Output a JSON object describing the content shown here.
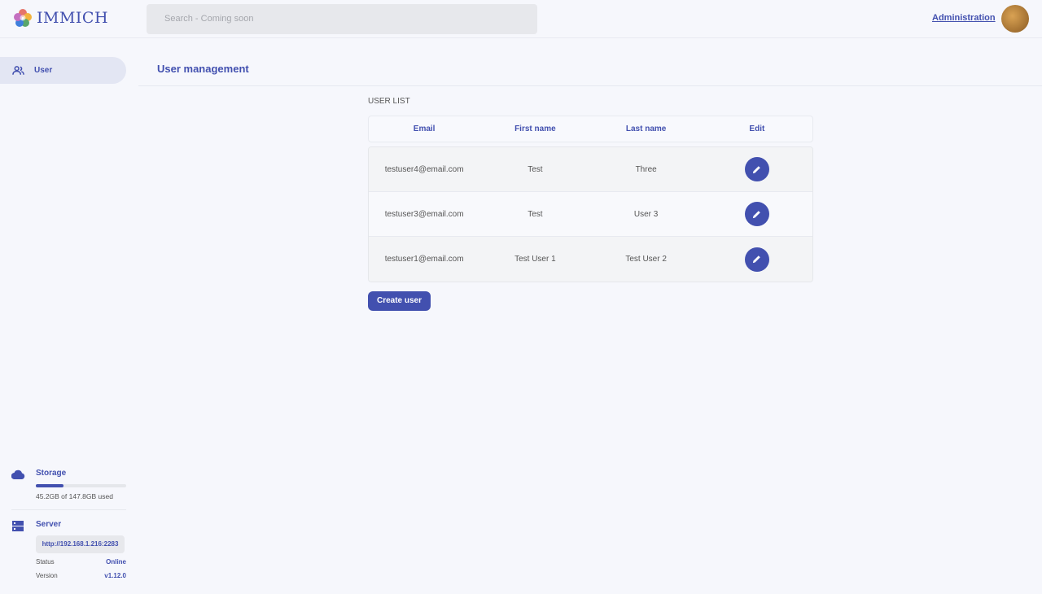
{
  "app": {
    "name": "IMMICH",
    "brand_color": "#4250af"
  },
  "header": {
    "search_placeholder": "Search - Coming soon",
    "admin_link": "Administration"
  },
  "sidebar": {
    "items": [
      {
        "label": "User",
        "icon": "users-icon"
      }
    ],
    "storage": {
      "title": "Storage",
      "used_text": "45.2GB of 147.8GB used",
      "used_fraction": 0.306
    },
    "server": {
      "title": "Server",
      "url": "http://192.168.1.216:2283",
      "status_label": "Status",
      "status": "Online",
      "version_label": "Version",
      "version": "v1.12.0"
    }
  },
  "main": {
    "title": "User management",
    "list_label": "USER LIST",
    "columns": [
      "Email",
      "First name",
      "Last name",
      "Edit"
    ],
    "rows": [
      {
        "email": "testuser4@email.com",
        "first": "Test",
        "last": "Three"
      },
      {
        "email": "testuser3@email.com",
        "first": "Test",
        "last": "User 3"
      },
      {
        "email": "testuser1@email.com",
        "first": "Test User 1",
        "last": "Test User 2"
      }
    ],
    "create_button": "Create user"
  }
}
